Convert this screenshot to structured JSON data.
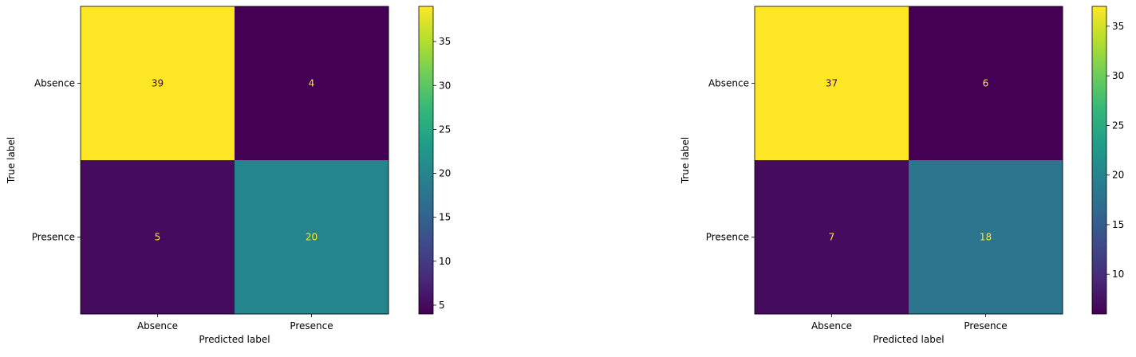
{
  "chart_data": [
    {
      "type": "heatmap",
      "title": "",
      "xlabel": "Predicted label",
      "ylabel": "True label",
      "x_categories": [
        "Absence",
        "Presence"
      ],
      "y_categories": [
        "Absence",
        "Presence"
      ],
      "values": [
        [
          39,
          4
        ],
        [
          5,
          20
        ]
      ],
      "colormap": "viridis",
      "colorbar": {
        "range": [
          4,
          39
        ],
        "ticks": [
          5,
          10,
          15,
          20,
          25,
          30,
          35
        ]
      },
      "grid": false
    },
    {
      "type": "heatmap",
      "title": "",
      "xlabel": "Predicted label",
      "ylabel": "True label",
      "x_categories": [
        "Absence",
        "Presence"
      ],
      "y_categories": [
        "Absence",
        "Presence"
      ],
      "values": [
        [
          37,
          6
        ],
        [
          7,
          18
        ]
      ],
      "colormap": "viridis",
      "colorbar": {
        "range": [
          6,
          37
        ],
        "ticks": [
          10,
          15,
          20,
          25,
          30,
          35
        ]
      },
      "grid": false
    }
  ]
}
